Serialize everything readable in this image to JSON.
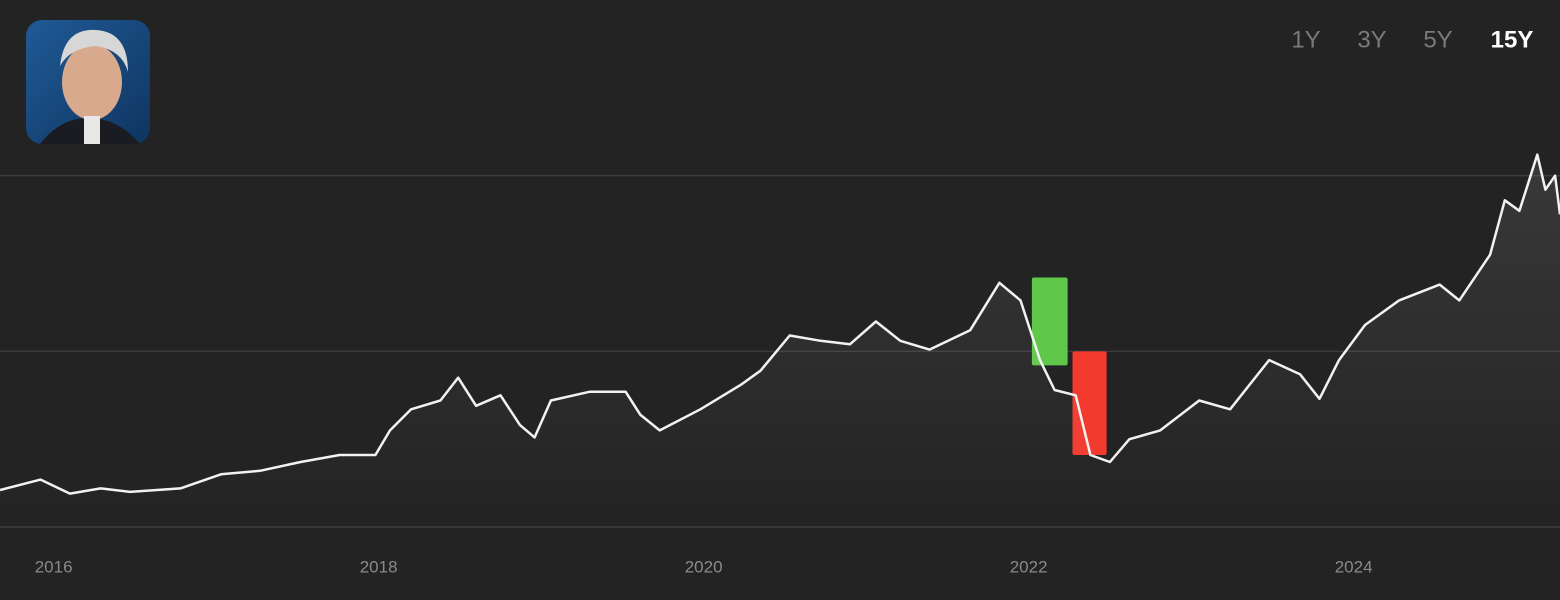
{
  "range_buttons": {
    "options": [
      "1Y",
      "3Y",
      "5Y",
      "15Y"
    ],
    "selected": 3
  },
  "chart_data": {
    "type": "line",
    "x": [
      2015.67,
      2015.92,
      2016.1,
      2016.29,
      2016.47,
      2016.78,
      2017.03,
      2017.27,
      2017.52,
      2017.76,
      2017.98,
      2018.07,
      2018.2,
      2018.38,
      2018.49,
      2018.6,
      2018.75,
      2018.87,
      2018.96,
      2019.06,
      2019.3,
      2019.52,
      2019.61,
      2019.73,
      2019.98,
      2020.23,
      2020.35,
      2020.53,
      2020.72,
      2020.9,
      2021.06,
      2021.21,
      2021.39,
      2021.64,
      2021.82,
      2021.95,
      2022.07,
      2022.16,
      2022.29,
      2022.38,
      2022.5,
      2022.62,
      2022.81,
      2023.05,
      2023.24,
      2023.48,
      2023.67,
      2023.79,
      2023.91,
      2024.07,
      2024.28,
      2024.53,
      2024.65,
      2024.84,
      2024.93,
      2025.02,
      2025.13,
      2025.18,
      2025.24,
      2025.27
    ],
    "series": [
      {
        "color": "#f2f2f2",
        "values": [
          1.21,
          1.27,
          1.19,
          1.22,
          1.2,
          1.22,
          1.3,
          1.32,
          1.37,
          1.41,
          1.41,
          1.55,
          1.67,
          1.72,
          1.85,
          1.69,
          1.75,
          1.58,
          1.51,
          1.72,
          1.77,
          1.77,
          1.64,
          1.55,
          1.67,
          1.81,
          1.89,
          2.09,
          2.06,
          2.04,
          2.17,
          2.06,
          2.01,
          2.12,
          2.39,
          2.29,
          1.95,
          1.78,
          1.75,
          1.41,
          1.37,
          1.5,
          1.55,
          1.72,
          1.67,
          1.95,
          1.87,
          1.73,
          1.95,
          2.15,
          2.29,
          2.38,
          2.29,
          2.55,
          2.86,
          2.8,
          3.12,
          2.92,
          3.0,
          2.78
        ]
      }
    ],
    "xlim": [
      2015.67,
      2025.27
    ],
    "xticks": [
      2016,
      2018,
      2020,
      2022,
      2024
    ],
    "ylim": [
      1,
      4
    ],
    "yticks": [
      1,
      2,
      3
    ],
    "grid": true,
    "ranges": [
      {
        "x0": 2022.02,
        "x1": 2022.24,
        "top": 2.42,
        "bottom": 1.92,
        "color": "#5fc84a"
      },
      {
        "x0": 2022.27,
        "x1": 2022.48,
        "top": 2.0,
        "bottom": 1.41,
        "color": "#f23a2e"
      }
    ]
  }
}
